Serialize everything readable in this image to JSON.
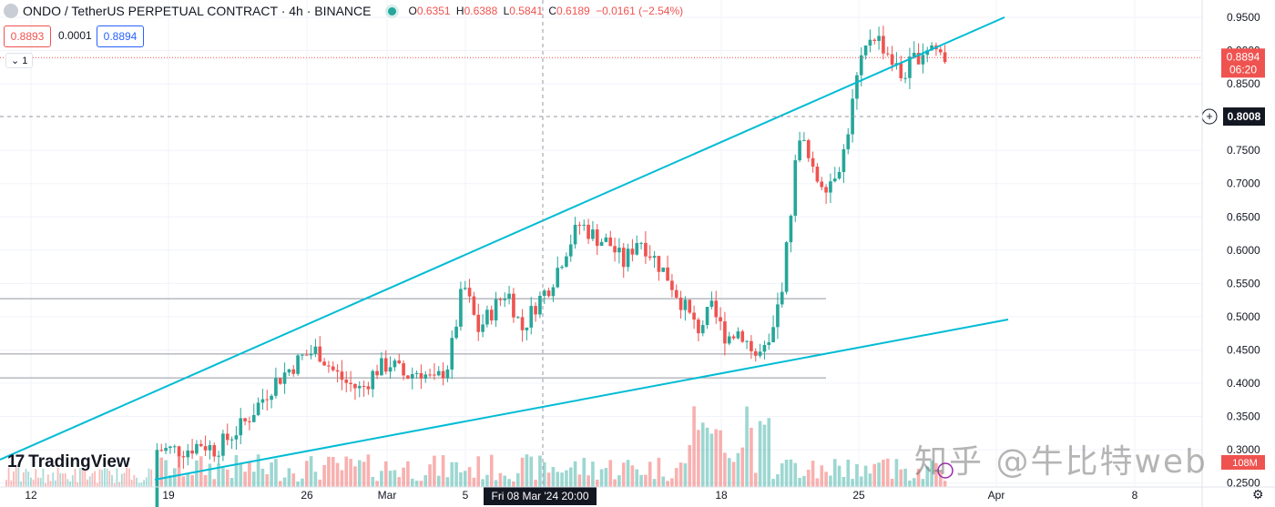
{
  "header": {
    "symbol": "ONDO / TetherUS PERPETUAL CONTRACT · 4h · BINANCE",
    "o_label": "O",
    "o_val": "0.6351",
    "h_label": "H",
    "h_val": "0.6388",
    "l_label": "L",
    "l_val": "0.5841",
    "c_label": "C",
    "c_val": "0.6189",
    "change": "−0.0161 (−2.54%)"
  },
  "quote": {
    "bid": "0.8893",
    "spread": "0.0001",
    "ask": "0.8894"
  },
  "indicator_toggle": "1",
  "brand": {
    "name": "TradingView",
    "mark": "17"
  },
  "watermark": "知乎 @牛比特web",
  "chart_data": {
    "type": "candlestick",
    "y_ticks": [
      "0.9500",
      "0.9000",
      "0.8500",
      "0.7500",
      "0.7000",
      "0.6500",
      "0.6000",
      "0.5500",
      "0.5000",
      "0.4500",
      "0.4000",
      "0.3500",
      "0.3000",
      "0.2500"
    ],
    "x_ticks": [
      "12",
      "19",
      "26",
      "Mar",
      "5",
      "18",
      "25",
      "Apr",
      "8"
    ],
    "crosshair_x_label": "Fri 08 Mar '24  20:00",
    "crosshair_y_label": "0.8008",
    "last_price": {
      "value": "0.8894",
      "countdown": "06:20",
      "price": 0.8894
    },
    "volume_label": "108M",
    "ylim": [
      0.25,
      0.98
    ],
    "candles_close_path": [
      [
        0.2,
        0.3
      ],
      [
        0.34,
        0.3
      ],
      [
        0.36,
        0.3
      ],
      [
        0.37,
        0.31
      ],
      [
        0.36,
        0.3
      ],
      [
        0.37,
        0.32
      ],
      [
        0.42,
        0.34
      ],
      [
        0.45,
        0.37
      ],
      [
        0.43,
        0.4
      ],
      [
        0.4,
        0.42
      ],
      [
        0.45,
        0.44
      ],
      [
        0.44,
        0.45
      ],
      [
        0.43,
        0.42
      ],
      [
        0.46,
        0.4
      ],
      [
        0.44,
        0.39
      ],
      [
        0.42,
        0.42
      ],
      [
        0.44,
        0.43
      ],
      [
        0.42,
        0.41
      ],
      [
        0.43,
        0.42
      ],
      [
        0.45,
        0.4
      ],
      [
        0.47,
        0.43
      ],
      [
        0.51,
        0.55
      ],
      [
        0.53,
        0.48
      ],
      [
        0.52,
        0.51
      ],
      [
        0.53,
        0.54
      ],
      [
        0.51,
        0.48
      ],
      [
        0.5,
        0.52
      ],
      [
        0.51,
        0.55
      ],
      [
        0.53,
        0.6
      ],
      [
        0.58,
        0.64
      ],
      [
        0.65,
        0.62
      ],
      [
        0.63,
        0.61
      ],
      [
        0.61,
        0.58
      ],
      [
        0.6,
        0.62
      ],
      [
        0.63,
        0.59
      ],
      [
        0.58,
        0.56
      ],
      [
        0.55,
        0.52
      ],
      [
        0.5,
        0.48
      ],
      [
        0.49,
        0.51
      ],
      [
        0.5,
        0.47
      ],
      [
        0.45,
        0.48
      ],
      [
        0.47,
        0.44
      ],
      [
        0.41,
        0.45
      ],
      [
        0.51,
        0.57
      ],
      [
        0.68,
        0.78
      ],
      [
        0.76,
        0.71
      ],
      [
        0.72,
        0.7
      ],
      [
        0.71,
        0.74
      ],
      [
        0.8,
        0.86
      ],
      [
        0.92,
        0.93
      ],
      [
        0.94,
        0.9
      ],
      [
        0.88,
        0.86
      ],
      [
        0.87,
        0.89
      ],
      [
        0.93,
        0.91
      ],
      [
        0.9,
        0.89
      ]
    ],
    "trendlines": [
      {
        "from": [
          0,
          0.294
        ],
        "to": [
          1,
          0.968
        ]
      },
      {
        "from": [
          0,
          0.247
        ],
        "to": [
          1,
          0.499
        ]
      }
    ],
    "horizontal_levels": [
      0.527,
      0.444,
      0.408
    ],
    "colors": {
      "up": "#26a69a",
      "down": "#ef5350",
      "trend": "#00bcd4",
      "level": "#9598a1"
    }
  }
}
